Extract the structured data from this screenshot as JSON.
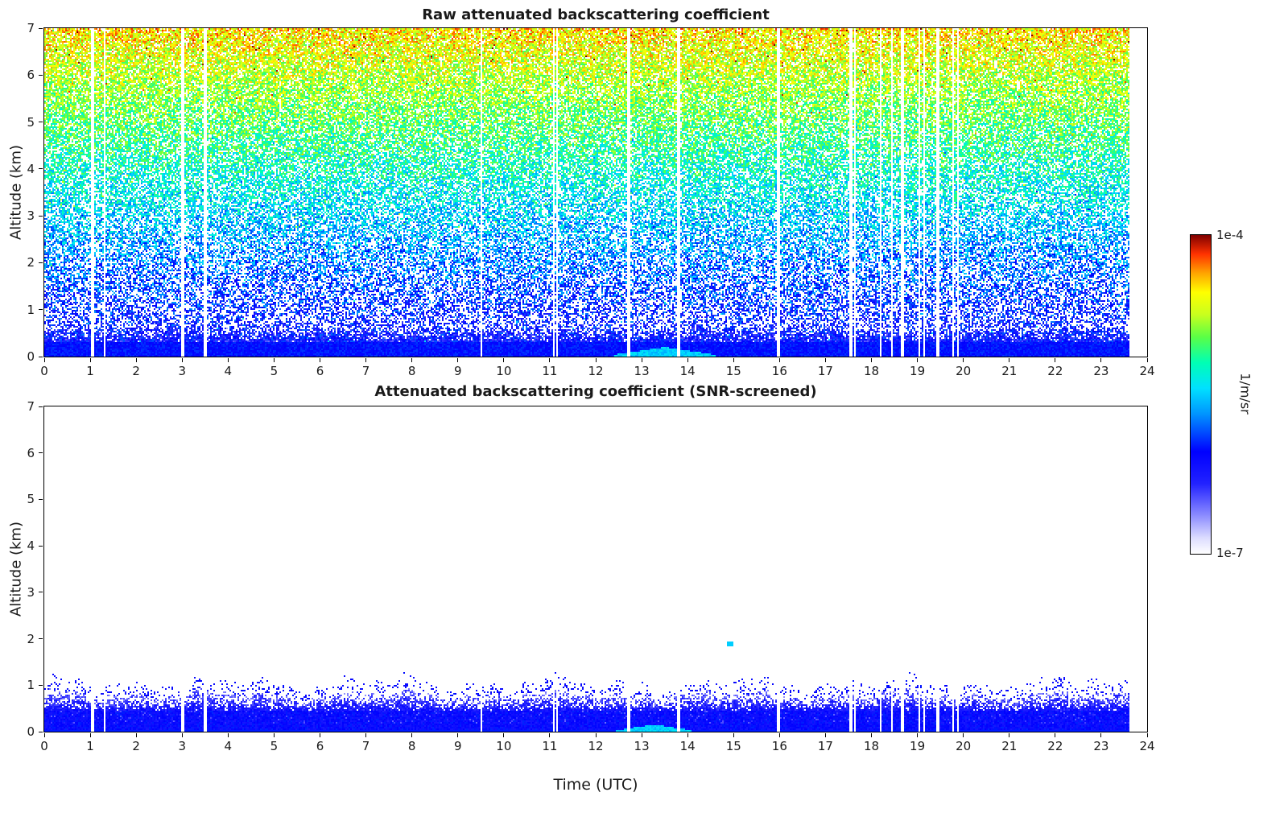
{
  "colorbar": {
    "orientation": "vertical",
    "max_label": "1e-4",
    "min_label": "1e-7",
    "unit_label": "1/m/sr",
    "scale": "logarithmic",
    "stops": [
      [
        0.0,
        "#ffffff"
      ],
      [
        0.05,
        "#dcdcff"
      ],
      [
        0.12,
        "#8c8cff"
      ],
      [
        0.22,
        "#2222ff"
      ],
      [
        0.32,
        "#0000ff"
      ],
      [
        0.44,
        "#0096ff"
      ],
      [
        0.52,
        "#00e1ff"
      ],
      [
        0.6,
        "#00ffb4"
      ],
      [
        0.68,
        "#5aff46"
      ],
      [
        0.75,
        "#c8ff1e"
      ],
      [
        0.82,
        "#ffff00"
      ],
      [
        0.88,
        "#ffa500"
      ],
      [
        0.94,
        "#ff3200"
      ],
      [
        1.0,
        "#7f0000"
      ]
    ]
  },
  "chart_data": [
    {
      "type": "heatmap",
      "title": "Raw attenuated backscattering coefficient",
      "xlabel": "",
      "ylabel": "Altitude (km)",
      "xlim": [
        0,
        24
      ],
      "ylim": [
        0,
        7
      ],
      "x_ticks": [
        0,
        1,
        2,
        3,
        4,
        5,
        6,
        7,
        8,
        9,
        10,
        11,
        12,
        13,
        14,
        15,
        16,
        17,
        18,
        19,
        20,
        21,
        22,
        23,
        24
      ],
      "y_ticks": [
        0,
        1,
        2,
        3,
        4,
        5,
        6,
        7
      ],
      "x_units": "hours UTC",
      "value_units": "1/m/sr",
      "value_range": [
        1e-07,
        0.0001
      ],
      "data_time_end": 23.62,
      "gap_times": [
        1.05,
        1.32,
        3.02,
        3.5,
        9.52,
        11.08,
        11.16,
        12.72,
        13.8,
        15.98,
        17.55,
        17.64,
        18.2,
        18.45,
        18.68,
        19.05,
        19.15,
        19.45,
        19.78,
        19.88
      ],
      "field": {
        "kind": "raw-noise",
        "description": "Instrument noise grows with altitude: dark-blue speckle below ~1.5 km, cyan 2-3 km, green 3-5 km, yellow-orange-red 5-7 km; solid bright-blue boundary layer below ~0.3 km; cyan near-surface plume around 12.4-14.6 UTC; thin white vertical columns are data gaps.",
        "surface_layer_top_km": 0.32,
        "surface_level": 0.33,
        "noise_level_base": 0.25,
        "noise_level_slope": 0.58,
        "noise_level_jitter": 0.24,
        "density_base": 0.45,
        "density_slope": 0.38,
        "plume": {
          "t_start": 12.4,
          "t_end": 14.6,
          "top_km": 0.16,
          "level": 0.5
        }
      }
    },
    {
      "type": "heatmap",
      "title": "Attenuated backscattering coefficient (SNR-screened)",
      "xlabel": "Time (UTC)",
      "ylabel": "Altitude (km)",
      "xlim": [
        0,
        24
      ],
      "ylim": [
        0,
        7
      ],
      "x_ticks": [
        0,
        1,
        2,
        3,
        4,
        5,
        6,
        7,
        8,
        9,
        10,
        11,
        12,
        13,
        14,
        15,
        16,
        17,
        18,
        19,
        20,
        21,
        22,
        23,
        24
      ],
      "y_ticks": [
        0,
        1,
        2,
        3,
        4,
        5,
        6,
        7
      ],
      "x_units": "hours UTC",
      "value_units": "1/m/sr",
      "value_range": [
        1e-07,
        0.0001
      ],
      "data_time_end": 23.62,
      "gap_times": [
        1.05,
        1.32,
        3.02,
        3.5,
        9.52,
        11.08,
        11.16,
        12.72,
        13.8,
        15.98,
        17.55,
        17.64,
        18.2,
        18.45,
        18.68,
        19.05,
        19.15,
        19.45,
        19.78,
        19.88
      ],
      "field": {
        "kind": "snr-screened",
        "description": "After SNR screening only the boundary layer remains: solid blue up to ~0.5 km, fading speckled light-blue to ~0.8 km, sparse dark-blue speckles with a wavy top edge up to ~1.1 km, white above; cyan near-surface plume around 12.5-14.1 UTC; single cyan speck near 14.9 UTC at 1.9 km.",
        "solid_top_km": 0.45,
        "fade_top_km": 0.8,
        "speckle_top_km": 1.12,
        "plume": {
          "t_start": 12.45,
          "t_end": 14.1,
          "top_km": 0.12,
          "level": 0.5
        },
        "speck": {
          "t": 14.92,
          "alt_km": 1.88,
          "level": 0.5
        }
      }
    }
  ]
}
